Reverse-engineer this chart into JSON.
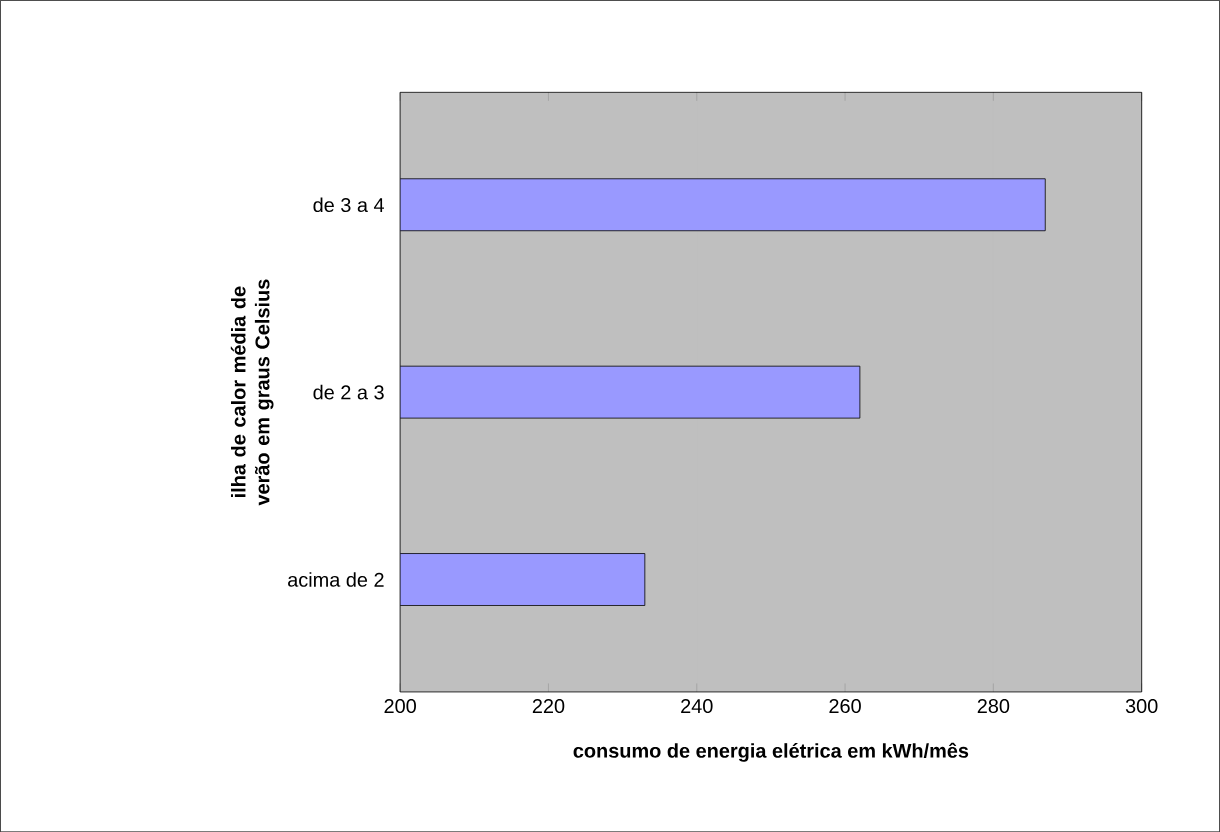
{
  "chart_data": {
    "type": "bar",
    "orientation": "horizontal",
    "xlabel": "consumo de energia elétrica em kWh/mês",
    "ylabel": "ilha de calor média de verão em graus Celsius",
    "categories": [
      "de 3 a 4",
      "de 2 a 3",
      "acima de 2"
    ],
    "values": [
      287,
      262,
      233
    ],
    "color": "#9999ff",
    "xlim": [
      200,
      300
    ],
    "xticks": [
      200,
      220,
      240,
      260,
      280,
      300
    ],
    "grid": "x"
  }
}
